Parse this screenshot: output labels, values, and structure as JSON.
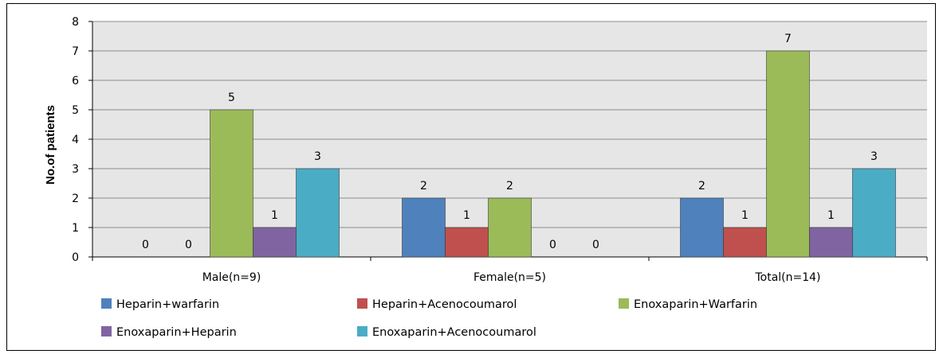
{
  "chart_data": {
    "type": "bar",
    "title": "",
    "xlabel": "",
    "ylabel": "No.of patients",
    "ylim": [
      0,
      8
    ],
    "yticks": [
      0,
      1,
      2,
      3,
      4,
      5,
      6,
      7,
      8
    ],
    "categories": [
      "Male(n=9)",
      "Female(n=5)",
      "Total(n=14)"
    ],
    "series": [
      {
        "name": "Heparin+warfarin",
        "values": [
          0,
          2,
          2
        ],
        "color": "#4F81BD"
      },
      {
        "name": "Heparin+Acenocoumarol",
        "values": [
          0,
          1,
          1
        ],
        "color": "#C0504D"
      },
      {
        "name": "Enoxaparin+Warfarin",
        "values": [
          5,
          2,
          7
        ],
        "color": "#9BBB59"
      },
      {
        "name": "Enoxaparin+Heparin",
        "values": [
          1,
          0,
          1
        ],
        "color": "#8064A2"
      },
      {
        "name": "Enoxaparin+Acenocoumarol",
        "values": [
          3,
          0,
          3
        ],
        "color": "#4BACC6"
      }
    ],
    "grid": true,
    "plot_background": "#E6E6E6",
    "legend_position": "bottom"
  }
}
